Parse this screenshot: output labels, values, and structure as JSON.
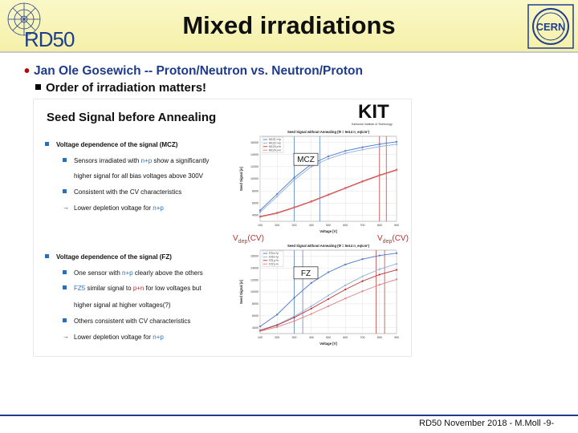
{
  "header": {
    "title": "Mixed irradiations",
    "rd50_logo_text": "RD50",
    "cern_logo_text": "CERN"
  },
  "bullets": {
    "level1": "Jan Ole Gosewich --  Proton/Neutron vs. Neutron/Proton",
    "level2": "Order of irradiation matters!"
  },
  "embedded_slide": {
    "title": "Seed Signal before Annealing",
    "kit_logo_text": "KIT",
    "kit_subtitle": "Karlsruhe Institute of Technology",
    "mcz_section": {
      "heading": "Voltage dependence of the signal (MCZ)",
      "line1a": "Sensors irradiated with ",
      "line1b": "n+p",
      "line1c": " show a significantly",
      "line2": "higher signal for all bias voltages above 300V",
      "line3": "Consistent with the CV characteristics",
      "line4a": "Lower depletion voltage for ",
      "line4b": "n+p"
    },
    "fz_section": {
      "heading": "Voltage dependence of the signal (FZ)",
      "line1a": "One sensor with ",
      "line1b": "n+p",
      "line1c": " clearly above the others",
      "line2a": "FZ5",
      "line2b": " similar signal to ",
      "line2c": "p+n",
      "line2d": " for low voltages but",
      "line3": "higher signal at higher voltages(?)",
      "line4": "Others consistent with CV characteristics",
      "line5a": "Lower depletion voltage for ",
      "line5b": "n+p"
    },
    "vdep_left": {
      "main": "V",
      "sub": "dep",
      "suffix": "(CV)"
    },
    "vdep_right": {
      "main": "V",
      "sub": "dep",
      "suffix": "(CV)"
    }
  },
  "chart_data": [
    {
      "type": "line",
      "title": "Seed Signal without Annealing (Φ = 5e14 n_eq/cm²)",
      "label": "MCZ",
      "xlabel": "Voltage [V]",
      "ylabel": "Seed Signal [e]",
      "x": [
        100,
        200,
        300,
        400,
        500,
        600,
        700,
        800,
        900
      ],
      "xticks": [
        "100",
        "200",
        "300",
        "400",
        "500",
        "600",
        "700",
        "800",
        "900"
      ],
      "yticks": [
        "4000",
        "6000",
        "8000",
        "10000",
        "12000",
        "14000",
        "16000"
      ],
      "ylim": [
        3000,
        17000
      ],
      "series": [
        {
          "name": "MCZ1 n+p",
          "color": "#4a78c8",
          "values": [
            4800,
            7500,
            10200,
            12400,
            13700,
            14600,
            15200,
            15700,
            16100
          ]
        },
        {
          "name": "MCZ2 n+p",
          "color": "#8fb0e0",
          "values": [
            4500,
            7100,
            9800,
            12000,
            13300,
            14200,
            14800,
            15300,
            15700
          ]
        },
        {
          "name": "MCZ3 p+n",
          "color": "#c03030",
          "values": [
            3800,
            4400,
            5300,
            6300,
            7400,
            8500,
            9600,
            10600,
            11500
          ]
        },
        {
          "name": "MCZ4 p+n",
          "color": "#e08080",
          "values": [
            3700,
            4300,
            5200,
            6200,
            7300,
            8400,
            9500,
            10500,
            11400
          ]
        }
      ],
      "grid": true,
      "legend": "top-left"
    },
    {
      "type": "line",
      "title": "Seed Signal without Annealing (Φ = 5e14 n_eq/cm²)",
      "label": "FZ",
      "xlabel": "Voltage [V]",
      "ylabel": "Seed Signal [e]",
      "x": [
        100,
        200,
        300,
        400,
        500,
        600,
        700,
        800,
        900
      ],
      "xticks": [
        "100",
        "200",
        "300",
        "400",
        "500",
        "600",
        "700",
        "800",
        "900"
      ],
      "yticks": [
        "4000",
        "6000",
        "8000",
        "10000",
        "12000",
        "14000",
        "16000"
      ],
      "ylim": [
        3000,
        17000
      ],
      "series": [
        {
          "name": "FZ4 n+p",
          "color": "#4a78c8",
          "values": [
            4200,
            6200,
            9000,
            11500,
            13300,
            14600,
            15500,
            16100,
            16500
          ]
        },
        {
          "name": "FZ5 n+p",
          "color": "#8fb0e0",
          "values": [
            3600,
            4500,
            5900,
            7600,
            9400,
            11100,
            12600,
            13800,
            14700
          ]
        },
        {
          "name": "FZ1 p+n",
          "color": "#c03030",
          "values": [
            3500,
            4400,
            5700,
            7200,
            8800,
            10400,
            11800,
            12900,
            13700
          ]
        },
        {
          "name": "FZ2 p+n",
          "color": "#e08080",
          "values": [
            3400,
            4100,
            5100,
            6300,
            7600,
            8900,
            10100,
            11200,
            12100
          ]
        }
      ],
      "grid": true,
      "legend": "top-left"
    }
  ],
  "footer": {
    "text": "RD50 November 2018 - M.Moll  -9-"
  },
  "colors": {
    "header_bg": "#f4f0a8",
    "title_blue": "#1e3b8c",
    "bullet_red": "#c00000",
    "accent_blue": "#2e6fb3",
    "accent_red": "#c03030"
  }
}
